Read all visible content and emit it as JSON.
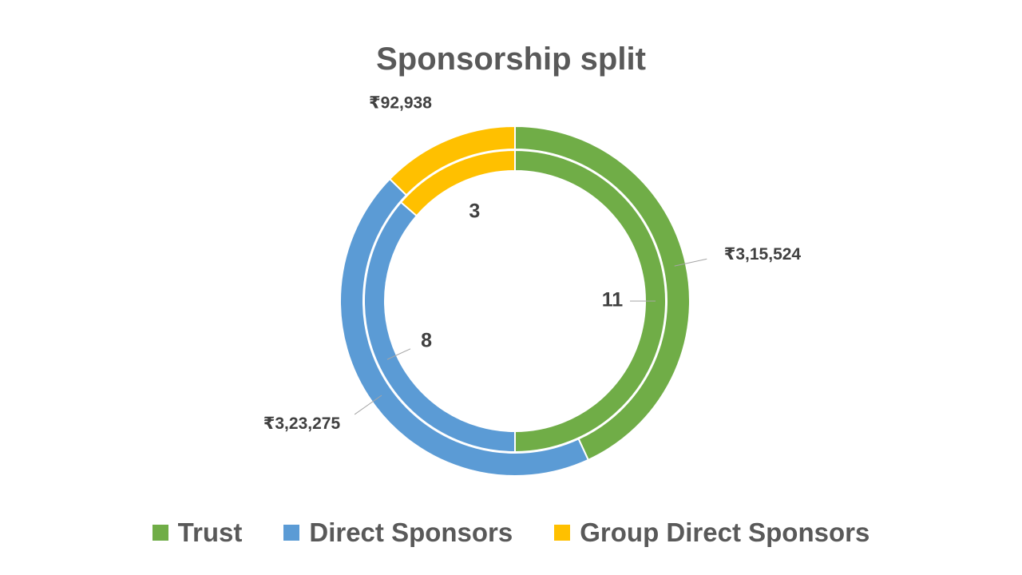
{
  "chart_data": {
    "type": "doughnut",
    "title": "Sponsorship split",
    "categories": [
      "Trust",
      "Direct Sponsors",
      "Group Direct Sponsors"
    ],
    "series": [
      {
        "ring": "outer",
        "values": [
          315524,
          323275,
          92938
        ],
        "labels": [
          "₹3,15,524",
          "₹3,23,275",
          "₹92,938"
        ]
      },
      {
        "ring": "inner",
        "values": [
          11,
          8,
          3
        ],
        "labels": [
          "11",
          "8",
          "3"
        ]
      }
    ],
    "colors": [
      "#70AD47",
      "#5B9BD5",
      "#FFC000"
    ],
    "legend_position": "bottom"
  }
}
